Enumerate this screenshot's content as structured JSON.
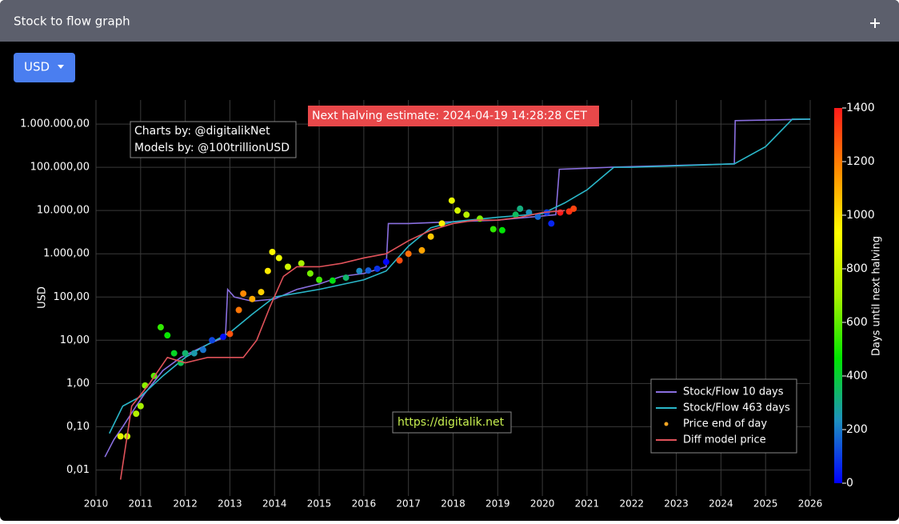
{
  "header": {
    "title": "Stock to flow graph"
  },
  "currency_button": "USD",
  "chart_data": {
    "type": "line",
    "y_label": "USD",
    "log_y": true,
    "grid": true,
    "legend_corner": "lower-right",
    "annotations": {
      "halving": "Next halving estimate: 2024-04-19 14:28:28 CET",
      "charts_by": "Charts by: @digitalikNet",
      "models_by": "Models by: @100trillionUSD",
      "url": "https://digitalik.net"
    },
    "xlim": [
      2010,
      2026
    ],
    "xticks": [
      2010,
      2011,
      2012,
      2013,
      2014,
      2015,
      2016,
      2017,
      2018,
      2019,
      2020,
      2021,
      2022,
      2023,
      2024,
      2025,
      2026
    ],
    "ylim": [
      0.0025,
      3600000
    ],
    "yticks": [
      {
        "value": 0.01,
        "label": "0,01"
      },
      {
        "value": 0.1,
        "label": "0,10"
      },
      {
        "value": 1,
        "label": "1,00"
      },
      {
        "value": 10,
        "label": "10,00"
      },
      {
        "value": 100,
        "label": "100,00"
      },
      {
        "value": 1000,
        "label": "1.000,00"
      },
      {
        "value": 10000,
        "label": "10.000,00"
      },
      {
        "value": 100000,
        "label": "100.000,00"
      },
      {
        "value": 1000000,
        "label": "1.000.000,00"
      }
    ],
    "colorbar": {
      "label": "Days until next halving",
      "lim": [
        0,
        1400
      ],
      "ticks": [
        0,
        200,
        400,
        600,
        800,
        1000,
        1200,
        1400
      ],
      "colors": [
        "#0000ff",
        "#1e90c0",
        "#00e600",
        "#a8f000",
        "#ffff00",
        "#ff8c00",
        "#ff1a1a"
      ]
    },
    "series": [
      {
        "name": "Stock/Flow 10 days",
        "type": "line",
        "color": "#8a6fe0",
        "x": [
          2010.2,
          2010.4,
          2010.6,
          2010.9,
          2011.1,
          2011.5,
          2011.9,
          2012.5,
          2012.9,
          2012.95,
          2013.1,
          2013.5,
          2014,
          2014.5,
          2015,
          2015.5,
          2016,
          2016.5,
          2016.55,
          2017,
          2018,
          2019,
          2020.3,
          2020.38,
          2021,
          2021.5,
          2024.3,
          2024.32,
          2026
        ],
        "values": [
          0.02,
          0.05,
          0.1,
          0.3,
          0.6,
          2,
          4,
          8,
          12,
          150,
          100,
          80,
          90,
          150,
          200,
          300,
          350,
          500,
          5000,
          5000,
          5500,
          6000,
          8000,
          90000,
          95000,
          100000,
          120000,
          1200000,
          1300000
        ]
      },
      {
        "name": "Stock/Flow 463 days",
        "type": "line",
        "color": "#2ab7c9",
        "x": [
          2010.3,
          2010.6,
          2011,
          2011.5,
          2012,
          2012.5,
          2013,
          2013.5,
          2014,
          2015,
          2016,
          2016.5,
          2017,
          2017.5,
          2018,
          2019,
          2020,
          2020.5,
          2021,
          2021.6,
          2022,
          2024.3,
          2025,
          2025.6,
          2026
        ],
        "values": [
          0.07,
          0.3,
          0.5,
          1.5,
          4,
          8,
          15,
          40,
          100,
          150,
          250,
          400,
          1500,
          4000,
          5500,
          7000,
          8500,
          15000,
          30000,
          100000,
          100000,
          120000,
          300000,
          1300000,
          1300000
        ]
      },
      {
        "name": "Price end of day",
        "type": "scatter",
        "color": "#f5a623",
        "x": [
          2010.55,
          2010.7,
          2010.9,
          2011.0,
          2011.1,
          2011.3,
          2011.45,
          2011.6,
          2011.75,
          2011.9,
          2012.0,
          2012.2,
          2012.4,
          2012.6,
          2012.85,
          2013.0,
          2013.2,
          2013.3,
          2013.5,
          2013.7,
          2013.85,
          2013.95,
          2014.1,
          2014.3,
          2014.6,
          2014.8,
          2015.0,
          2015.3,
          2015.6,
          2015.9,
          2016.1,
          2016.3,
          2016.5,
          2016.8,
          2017.0,
          2017.3,
          2017.5,
          2017.75,
          2017.97,
          2018.1,
          2018.3,
          2018.6,
          2018.9,
          2019.1,
          2019.4,
          2019.5,
          2019.7,
          2019.9,
          2020.1,
          2020.2,
          2020.4,
          2020.6,
          2020.7
        ],
        "values": [
          0.06,
          0.06,
          0.2,
          0.3,
          0.9,
          1.5,
          20,
          13,
          5,
          3,
          5,
          5,
          6,
          10,
          12,
          14,
          50,
          120,
          90,
          130,
          400,
          1100,
          800,
          500,
          600,
          350,
          250,
          240,
          280,
          400,
          410,
          450,
          650,
          700,
          1000,
          1200,
          2500,
          5000,
          17000,
          10000,
          8000,
          6500,
          3700,
          3500,
          8000,
          11000,
          9000,
          7200,
          9000,
          5000,
          9000,
          9500,
          11000
        ],
        "days": [
          861,
          807,
          734,
          697,
          661,
          588,
          533,
          478,
          423,
          369,
          332,
          259,
          186,
          113,
          22,
          1285,
          1212,
          1175,
          1102,
          1029,
          975,
          938,
          883,
          810,
          701,
          628,
          555,
          445,
          336,
          226,
          153,
          80,
          7,
          1299,
          1226,
          1117,
          1044,
          953,
          872,
          818,
          752,
          643,
          533,
          460,
          350,
          314,
          241,
          168,
          95,
          58,
          1420,
          1350,
          1314
        ]
      },
      {
        "name": "Diff model price",
        "type": "line",
        "color": "#e0525a",
        "x": [
          2010.55,
          2010.8,
          2011.2,
          2011.6,
          2012,
          2012.5,
          2012.9,
          2013.3,
          2013.6,
          2013.9,
          2014.2,
          2014.5,
          2015,
          2015.5,
          2016,
          2016.5,
          2017,
          2017.5,
          2018,
          2018.5,
          2019,
          2019.5,
          2020,
          2020.5
        ],
        "values": [
          0.006,
          0.3,
          1,
          4,
          3,
          4,
          4,
          4,
          10,
          60,
          300,
          500,
          500,
          600,
          800,
          1000,
          2000,
          3500,
          5000,
          6000,
          6000,
          7000,
          9000,
          10000
        ]
      }
    ]
  }
}
